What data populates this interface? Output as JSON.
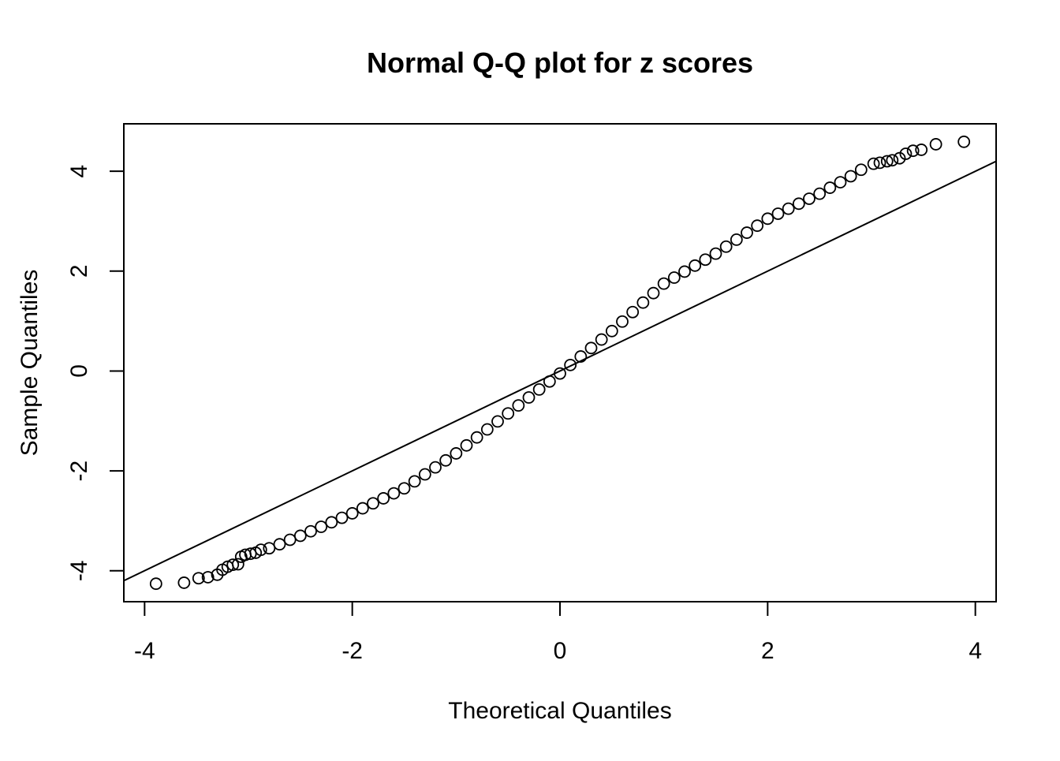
{
  "chart_data": {
    "type": "scatter",
    "title": "Normal Q-Q plot for z scores",
    "x_label": "Theoretical Quantiles",
    "y_label": "Sample Quantiles",
    "x": [
      -3.89,
      -3.62,
      -3.48,
      -3.39,
      -3.3,
      -3.25,
      -3.2,
      -3.15,
      -3.1,
      -3.07,
      -3.03,
      -2.98,
      -2.93,
      -2.88,
      -2.8,
      -2.7,
      -2.6,
      -2.5,
      -2.4,
      -2.3,
      -2.2,
      -2.1,
      -2.0,
      -1.9,
      -1.8,
      -1.7,
      -1.6,
      -1.5,
      -1.4,
      -1.3,
      -1.2,
      -1.1,
      -1.0,
      -0.9,
      -0.8,
      -0.7,
      -0.6,
      -0.5,
      -0.4,
      -0.3,
      -0.2,
      -0.1,
      0,
      0.1,
      0.2,
      0.3,
      0.4,
      0.5,
      0.6,
      0.7,
      0.8,
      0.9,
      1.0,
      1.1,
      1.2,
      1.3,
      1.4,
      1.5,
      1.6,
      1.7,
      1.8,
      1.9,
      2.0,
      2.1,
      2.2,
      2.3,
      2.4,
      2.5,
      2.6,
      2.7,
      2.8,
      2.9,
      3.02,
      3.08,
      3.15,
      3.2,
      3.27,
      3.33,
      3.4,
      3.48,
      3.62,
      3.89
    ],
    "values": [
      -4.26,
      -4.24,
      -4.15,
      -4.13,
      -4.08,
      -3.98,
      -3.92,
      -3.88,
      -3.87,
      -3.72,
      -3.68,
      -3.66,
      -3.64,
      -3.58,
      -3.55,
      -3.47,
      -3.38,
      -3.3,
      -3.21,
      -3.12,
      -3.03,
      -2.94,
      -2.85,
      -2.75,
      -2.65,
      -2.55,
      -2.45,
      -2.35,
      -2.21,
      -2.07,
      -1.93,
      -1.79,
      -1.65,
      -1.49,
      -1.33,
      -1.17,
      -1.01,
      -0.85,
      -0.69,
      -0.53,
      -0.37,
      -0.21,
      -0.05,
      0.12,
      0.29,
      0.46,
      0.63,
      0.8,
      0.99,
      1.18,
      1.37,
      1.56,
      1.75,
      1.87,
      1.99,
      2.11,
      2.23,
      2.35,
      2.49,
      2.63,
      2.77,
      2.91,
      3.05,
      3.15,
      3.25,
      3.35,
      3.45,
      3.55,
      3.67,
      3.78,
      3.9,
      4.03,
      4.15,
      4.17,
      4.2,
      4.22,
      4.26,
      4.35,
      4.41,
      4.43,
      4.54,
      4.59
    ],
    "reference_line": {
      "intercept": 0,
      "slope": 1
    },
    "color": "#000000",
    "xlim": [
      -4.2,
      4.2
    ],
    "xticks": [
      -4,
      -2,
      0,
      2,
      4
    ],
    "ylim": [
      -4.62,
      4.95
    ],
    "yticks": [
      -4,
      -2,
      0,
      2,
      4
    ]
  }
}
